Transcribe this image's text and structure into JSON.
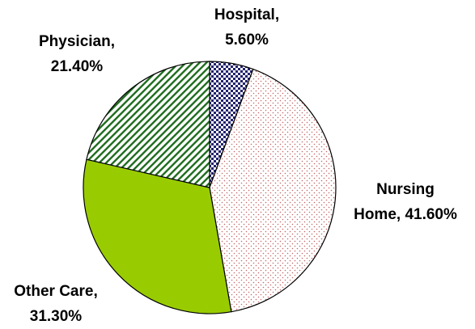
{
  "chart_data": {
    "type": "pie",
    "title": "",
    "slices": [
      {
        "label": "Hospital,",
        "value_text": "5.60%",
        "value": 5.6,
        "pattern": "checker",
        "fill": "#ffffff",
        "pattern_color": "#22226e"
      },
      {
        "label": "Nursing Home,",
        "label_lines": [
          "Nursing",
          "Home, 41.60%"
        ],
        "value_text": "41.60%",
        "value": 41.6,
        "pattern": "dots",
        "fill": "#ffffff",
        "pattern_color": "#c46a6a"
      },
      {
        "label": "Other Care,",
        "value_text": "31.30%",
        "value": 31.3,
        "pattern": "solid",
        "fill": "#99cc00",
        "pattern_color": "#99cc00"
      },
      {
        "label": "Physician,",
        "value_text": "21.40%",
        "value": 21.4,
        "pattern": "diagonal-stripes",
        "fill": "#ffffff",
        "pattern_color": "#1e6b1e"
      }
    ],
    "start_angle_deg": 0,
    "direction": "clockwise",
    "legend": "none",
    "outline_color": "#000000"
  }
}
